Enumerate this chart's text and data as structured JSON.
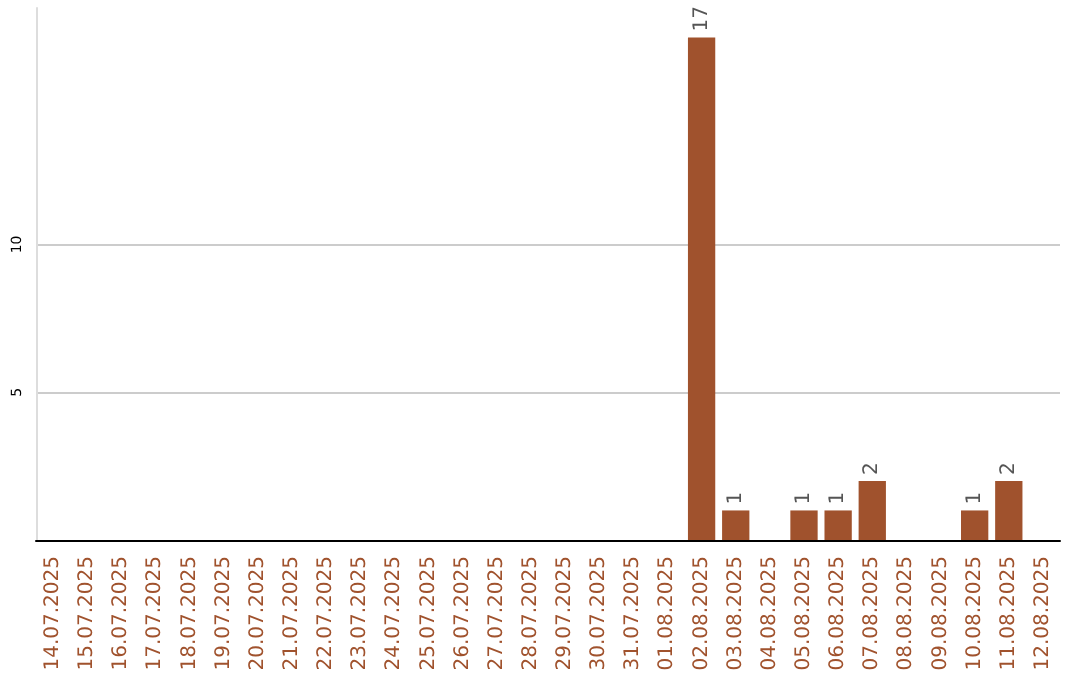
{
  "chart_data": {
    "type": "bar",
    "categories": [
      "14.07.2025",
      "15.07.2025",
      "16.07.2025",
      "17.07.2025",
      "18.07.2025",
      "19.07.2025",
      "20.07.2025",
      "21.07.2025",
      "22.07.2025",
      "23.07.2025",
      "24.07.2025",
      "25.07.2025",
      "26.07.2025",
      "27.07.2025",
      "28.07.2025",
      "29.07.2025",
      "30.07.2025",
      "31.07.2025",
      "01.08.2025",
      "02.08.2025",
      "03.08.2025",
      "04.08.2025",
      "05.08.2025",
      "06.08.2025",
      "07.08.2025",
      "08.08.2025",
      "09.08.2025",
      "10.08.2025",
      "11.08.2025",
      "12.08.2025"
    ],
    "values": [
      0,
      0,
      0,
      0,
      0,
      0,
      0,
      0,
      0,
      0,
      0,
      0,
      0,
      0,
      0,
      0,
      0,
      0,
      0,
      17,
      1,
      0,
      1,
      1,
      2,
      0,
      0,
      1,
      2,
      0
    ],
    "value_labels": [
      null,
      null,
      null,
      null,
      null,
      null,
      null,
      null,
      null,
      null,
      null,
      null,
      null,
      null,
      null,
      null,
      null,
      null,
      null,
      "17",
      "1",
      null,
      "1",
      "1",
      "2",
      null,
      null,
      "1",
      "2",
      null
    ],
    "color": "#a0522d",
    "ylim": [
      0,
      18
    ],
    "yticks": [
      5,
      10
    ],
    "grid": "y"
  }
}
